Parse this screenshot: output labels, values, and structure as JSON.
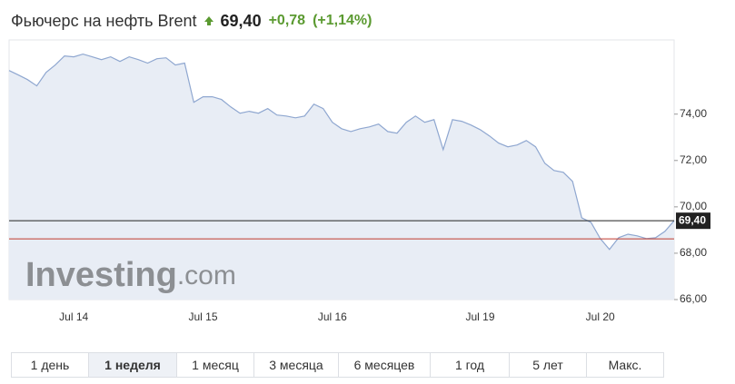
{
  "header": {
    "title": "Фьючерс на нефть Brent",
    "price": "69,40",
    "change": "+0,78",
    "change_pct": "(+1,14%)",
    "color": "#5b9a31"
  },
  "chart_data": {
    "type": "area",
    "categories": [
      null,
      null,
      null,
      null,
      null,
      null,
      null,
      "Jul 14",
      null,
      null,
      null,
      null,
      null,
      null,
      null,
      null,
      null,
      null,
      null,
      null,
      null,
      "Jul 15",
      null,
      null,
      null,
      null,
      null,
      null,
      null,
      null,
      null,
      null,
      null,
      null,
      null,
      "Jul 16",
      null,
      null,
      null,
      null,
      null,
      null,
      null,
      null,
      null,
      null,
      null,
      null,
      null,
      null,
      null,
      "Jul 19",
      null,
      null,
      null,
      null,
      null,
      null,
      null,
      null,
      null,
      null,
      null,
      null,
      "Jul 20",
      null,
      null,
      null,
      null,
      null,
      null,
      null,
      null
    ],
    "values": [
      75.88,
      75.69,
      75.49,
      75.22,
      75.8,
      76.12,
      76.51,
      76.47,
      76.59,
      76.47,
      76.35,
      76.47,
      76.27,
      76.47,
      76.35,
      76.2,
      76.39,
      76.43,
      76.12,
      76.2,
      74.51,
      74.75,
      74.75,
      74.63,
      74.31,
      74.04,
      74.12,
      74.04,
      74.24,
      73.96,
      73.92,
      73.84,
      73.92,
      74.43,
      74.24,
      73.65,
      73.37,
      73.25,
      73.37,
      73.45,
      73.57,
      73.25,
      73.18,
      73.65,
      73.92,
      73.65,
      73.76,
      72.47,
      73.76,
      73.69,
      73.53,
      73.33,
      73.06,
      72.75,
      72.59,
      72.67,
      72.86,
      72.59,
      71.88,
      71.57,
      71.49,
      71.1,
      69.53,
      69.33,
      68.63,
      68.16,
      68.67,
      68.82,
      68.75,
      68.63,
      68.67,
      68.94,
      69.4
    ],
    "color": "#8fa7d0",
    "fill": "#e8edf5",
    "ylim": [
      66,
      77.2
    ],
    "yticks": [
      {
        "value": 66,
        "label": "66,00"
      },
      {
        "value": 68,
        "label": "68,00"
      },
      {
        "value": 70,
        "label": "70,00"
      },
      {
        "value": 72,
        "label": "72,00"
      },
      {
        "value": 74,
        "label": "74,00"
      }
    ],
    "hlines": [
      {
        "value": 69.4,
        "label": "69,40",
        "color": "#222"
      },
      {
        "value": 68.62,
        "color": "#c0392b"
      }
    ],
    "watermark": {
      "brand": "Investing",
      "suffix": ".com"
    }
  },
  "ranges": {
    "items": [
      "1 день",
      "1 неделя",
      "1 месяц",
      "3 месяца",
      "6 месяцев",
      "1 год",
      "5 лет",
      "Макс."
    ],
    "active": 1
  }
}
